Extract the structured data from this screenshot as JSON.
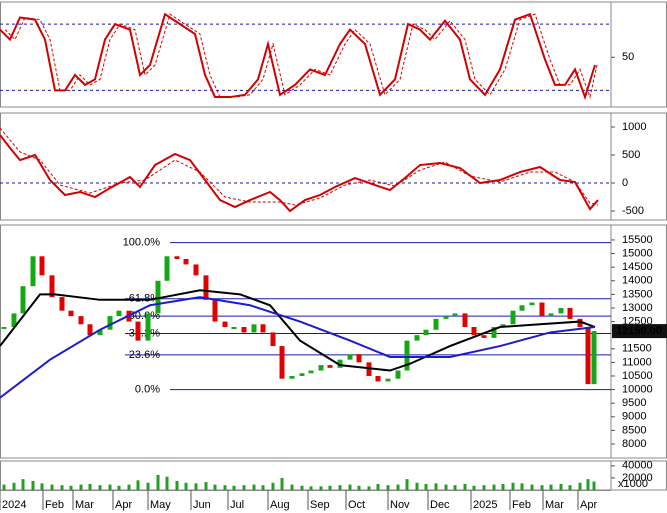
{
  "chart_data": [
    {
      "type": "line",
      "xlim": [
        0,
        611
      ],
      "ylim": [
        5,
        100
      ],
      "yticks": [
        50
      ],
      "ref_lines": [
        80,
        20
      ],
      "ref_color": "#1a1aa8",
      "series": [
        {
          "color": "#d40000",
          "dash": false,
          "x": [
            0,
            10,
            20,
            35,
            45,
            55,
            65,
            75,
            85,
            95,
            105,
            115,
            130,
            140,
            150,
            165,
            180,
            195,
            205,
            215,
            230,
            245,
            258,
            268,
            280,
            295,
            310,
            325,
            340,
            350,
            365,
            380,
            395,
            408,
            420,
            430,
            445,
            460,
            470,
            485,
            500,
            515,
            530,
            545,
            555,
            565,
            575,
            585,
            595
          ],
          "values": [
            75,
            66,
            86,
            84,
            66,
            20,
            20,
            34,
            25,
            30,
            66,
            80,
            75,
            34,
            43,
            89,
            80,
            71,
            34,
            14,
            14,
            16,
            30,
            62,
            16,
            25,
            39,
            34,
            62,
            75,
            62,
            16,
            30,
            80,
            75,
            66,
            83,
            66,
            30,
            16,
            39,
            84,
            89,
            48,
            25,
            25,
            39,
            14,
            43
          ]
        },
        {
          "color": "#d40000",
          "dash": true,
          "x": [
            5,
            15,
            25,
            40,
            50,
            60,
            70,
            80,
            90,
            100,
            110,
            120,
            135,
            145,
            155,
            170,
            185,
            200,
            210,
            220,
            235,
            250,
            263,
            273,
            285,
            300,
            315,
            330,
            345,
            355,
            370,
            385,
            400,
            413,
            425,
            435,
            450,
            465,
            475,
            490,
            505,
            520,
            535,
            550,
            560,
            570,
            580,
            590,
            597
          ],
          "values": [
            75,
            66,
            86,
            84,
            66,
            20,
            20,
            34,
            25,
            30,
            66,
            80,
            75,
            34,
            43,
            89,
            80,
            71,
            34,
            14,
            14,
            16,
            30,
            62,
            16,
            25,
            39,
            34,
            62,
            75,
            62,
            16,
            30,
            80,
            75,
            66,
            83,
            66,
            30,
            16,
            39,
            84,
            89,
            48,
            25,
            25,
            39,
            14,
            43
          ]
        }
      ]
    },
    {
      "type": "line",
      "xlim": [
        0,
        611
      ],
      "ylim": [
        -660,
        1250
      ],
      "yticks": [
        1000,
        500,
        0,
        -500
      ],
      "ref_lines": [
        0
      ],
      "ref_color": "#1a1aa8",
      "series": [
        {
          "color": "#d40000",
          "dash": false,
          "x": [
            0,
            10,
            20,
            35,
            50,
            65,
            80,
            95,
            110,
            130,
            140,
            155,
            175,
            190,
            205,
            220,
            235,
            250,
            270,
            280,
            290,
            305,
            320,
            335,
            355,
            375,
            390,
            405,
            420,
            440,
            460,
            480,
            500,
            520,
            540,
            560,
            575,
            585,
            590,
            598
          ],
          "values": [
            857,
            625,
            410,
            500,
            54,
            -214,
            -160,
            -250,
            -90,
            107,
            -71,
            321,
            518,
            410,
            54,
            -304,
            -429,
            -304,
            -160,
            -304,
            -500,
            -304,
            -214,
            -71,
            89,
            -36,
            -125,
            89,
            321,
            357,
            268,
            0,
            54,
            196,
            286,
            54,
            18,
            -304,
            -464,
            -304
          ]
        },
        {
          "color": "#d40000",
          "dash": true,
          "x": [
            0,
            20,
            40,
            60,
            90,
            120,
            145,
            175,
            200,
            225,
            250,
            280,
            295,
            320,
            345,
            370,
            395,
            420,
            445,
            470,
            500,
            530,
            555,
            575,
            590,
            598
          ],
          "values": [
            982,
            554,
            411,
            -36,
            -179,
            0,
            54,
            410,
            196,
            -250,
            -339,
            -339,
            -393,
            -268,
            -36,
            54,
            -54,
            232,
            375,
            125,
            18,
            196,
            196,
            18,
            -357,
            -393
          ]
        }
      ]
    },
    {
      "type": "candlestick",
      "xlim": [
        0,
        611
      ],
      "ylim": [
        7485,
        16050
      ],
      "yticks": [
        15500,
        15000,
        14500,
        14000,
        13500,
        13000,
        12500,
        11500,
        11000,
        10500,
        10000,
        9500,
        9000,
        8500,
        8000
      ],
      "up_color": "#14a814",
      "down_color": "#e00000",
      "x": [
        4,
        14,
        23,
        33,
        42,
        52,
        62,
        71,
        81,
        90,
        100,
        110,
        119,
        129,
        138,
        148,
        158,
        167,
        177,
        186,
        196,
        206,
        215,
        225,
        234,
        244,
        254,
        263,
        273,
        282,
        292,
        302,
        311,
        321,
        330,
        340,
        350,
        359,
        369,
        378,
        388,
        398,
        407,
        417,
        426,
        436,
        446,
        455,
        465,
        474,
        484,
        494,
        503,
        513,
        522,
        532,
        542,
        551,
        561,
        570,
        580,
        588,
        594
      ],
      "close": [
        12300,
        12800,
        13800,
        14900,
        14200,
        13400,
        12900,
        12700,
        12400,
        12000,
        12200,
        12700,
        12900,
        12500,
        11800,
        12800,
        14000,
        14900,
        14800,
        14600,
        14200,
        13300,
        12500,
        12300,
        12300,
        12100,
        12400,
        12100,
        11600,
        10400,
        10500,
        10600,
        10700,
        10900,
        10800,
        11100,
        11300,
        11000,
        10500,
        10300,
        10400,
        10700,
        11800,
        12000,
        12200,
        12600,
        12700,
        12800,
        12300,
        12000,
        11900,
        12300,
        12400,
        12900,
        13100,
        13200,
        12700,
        12800,
        13000,
        12600,
        12300,
        10200,
        12150
      ],
      "series": [
        {
          "color": "#000000",
          "x": [
            0,
            40,
            55,
            100,
            150,
            200,
            240,
            270,
            300,
            340,
            390,
            410,
            450,
            500,
            540,
            580,
            595
          ],
          "values": [
            11600,
            13500,
            13500,
            13300,
            13300,
            13650,
            13500,
            13100,
            11800,
            10900,
            10700,
            10950,
            11600,
            12300,
            12400,
            12500,
            12300
          ]
        },
        {
          "color": "#1c1ccc",
          "x": [
            0,
            50,
            100,
            150,
            200,
            250,
            300,
            350,
            390,
            450,
            500,
            550,
            595
          ],
          "values": [
            9700,
            11100,
            12200,
            13100,
            13400,
            13100,
            12500,
            11800,
            11200,
            11200,
            11600,
            12100,
            12300
          ]
        }
      ],
      "fib_color": "#1a1aa8",
      "fib_levels": [
        {
          "label": "100.0%",
          "price": 15400
        },
        {
          "label": "61.8%",
          "price": 13337
        },
        {
          "label": "50.0%",
          "price": 12700
        },
        {
          "label": "38.2%",
          "price": 12063
        },
        {
          "label": "23.6%",
          "price": 11274
        },
        {
          "label": "0.0%",
          "price": 10000
        }
      ],
      "last_price": {
        "value": 12150,
        "label": "12150.00"
      }
    },
    {
      "type": "bar",
      "xlim": [
        0,
        611
      ],
      "ylim": [
        0,
        48000
      ],
      "yticks": [
        40000,
        20000
      ],
      "unit_label": "x1000",
      "color": "#22a022",
      "x": [
        4,
        14,
        23,
        33,
        42,
        52,
        62,
        71,
        81,
        90,
        100,
        110,
        119,
        129,
        138,
        148,
        158,
        167,
        177,
        186,
        196,
        206,
        215,
        225,
        234,
        244,
        254,
        263,
        273,
        282,
        292,
        302,
        311,
        321,
        330,
        340,
        350,
        359,
        369,
        378,
        388,
        398,
        407,
        417,
        426,
        436,
        446,
        455,
        465,
        474,
        484,
        494,
        503,
        513,
        522,
        532,
        542,
        551,
        561,
        570,
        580,
        588,
        594
      ],
      "values": [
        9000,
        12000,
        18000,
        15000,
        11000,
        9000,
        8000,
        7000,
        9000,
        10000,
        8000,
        9000,
        7000,
        9000,
        16000,
        12000,
        25000,
        22000,
        15000,
        12000,
        11000,
        13000,
        9000,
        8000,
        7000,
        8000,
        9000,
        8000,
        12000,
        20000,
        9000,
        7000,
        6000,
        6000,
        7000,
        8000,
        9000,
        7000,
        6000,
        10000,
        8000,
        9000,
        18000,
        12000,
        10000,
        11000,
        9000,
        8000,
        10000,
        7000,
        8000,
        9000,
        10000,
        12000,
        11000,
        9000,
        8000,
        9000,
        10000,
        8000,
        12000,
        18000,
        14000
      ],
      "xticks": [
        {
          "value": 0,
          "label": "2024"
        },
        {
          "value": 43,
          "label": "Feb"
        },
        {
          "value": 73,
          "label": "Mar"
        },
        {
          "value": 113,
          "label": "Apr"
        },
        {
          "value": 148,
          "label": "May"
        },
        {
          "value": 191,
          "label": "Jun"
        },
        {
          "value": 228,
          "label": "Jul"
        },
        {
          "value": 268,
          "label": "Aug"
        },
        {
          "value": 308,
          "label": "Sep"
        },
        {
          "value": 346,
          "label": "Oct"
        },
        {
          "value": 388,
          "label": "Nov"
        },
        {
          "value": 428,
          "label": "Dec"
        },
        {
          "value": 471,
          "label": "2025"
        },
        {
          "value": 510,
          "label": "Feb"
        },
        {
          "value": 543,
          "label": "Mar"
        },
        {
          "value": 578,
          "label": "Apr"
        }
      ]
    }
  ]
}
